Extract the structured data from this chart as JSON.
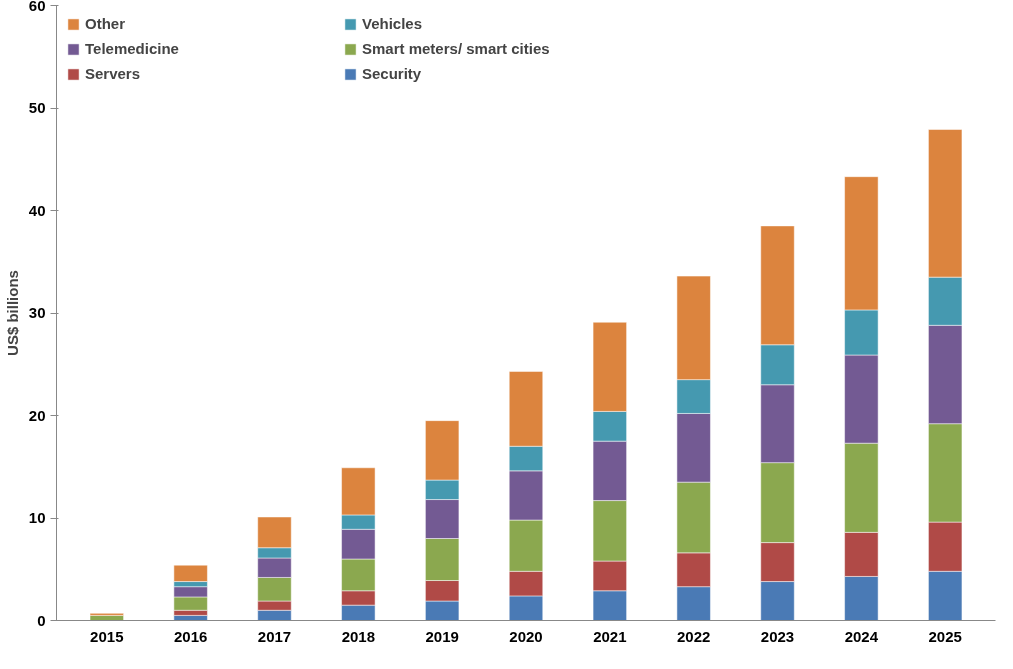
{
  "chart_data": {
    "type": "bar",
    "stacked": true,
    "ylabel": "US$ billions",
    "categories": [
      "2015",
      "2016",
      "2017",
      "2018",
      "2019",
      "2020",
      "2021",
      "2022",
      "2023",
      "2024",
      "2025"
    ],
    "ylim": [
      0,
      60
    ],
    "yticks": [
      0,
      10,
      20,
      30,
      40,
      50,
      60
    ],
    "grid": false,
    "legend": "top left",
    "series": [
      {
        "name": "Security",
        "color": "#4a7ab5",
        "values": [
          null,
          0.5,
          1.0,
          1.5,
          1.9,
          2.4,
          2.9,
          3.3,
          3.8,
          4.3,
          4.8
        ]
      },
      {
        "name": "Servers",
        "color": "#b04a47",
        "values": [
          null,
          0.5,
          0.9,
          1.4,
          2.0,
          2.4,
          2.9,
          3.3,
          3.8,
          4.3,
          4.8
        ]
      },
      {
        "name": "Smart meters/ smart cities",
        "color": "#8ba84f",
        "values": [
          0.5,
          1.3,
          2.3,
          3.1,
          4.1,
          5.0,
          5.9,
          6.9,
          7.8,
          8.7,
          9.6
        ]
      },
      {
        "name": "Telemedicine",
        "color": "#735a93",
        "values": [
          null,
          1.0,
          1.9,
          2.9,
          3.8,
          4.8,
          5.8,
          6.7,
          7.6,
          8.6,
          9.6
        ]
      },
      {
        "name": "Vehicles",
        "color": "#4599b0",
        "values": [
          null,
          0.5,
          1.0,
          1.4,
          1.9,
          2.4,
          2.9,
          3.3,
          3.9,
          4.4,
          4.7
        ]
      },
      {
        "name": "Other",
        "color": "#dc843e",
        "values": [
          0.2,
          1.6,
          3.0,
          4.6,
          5.8,
          7.3,
          8.7,
          10.1,
          11.6,
          13.0,
          14.4
        ]
      }
    ]
  }
}
